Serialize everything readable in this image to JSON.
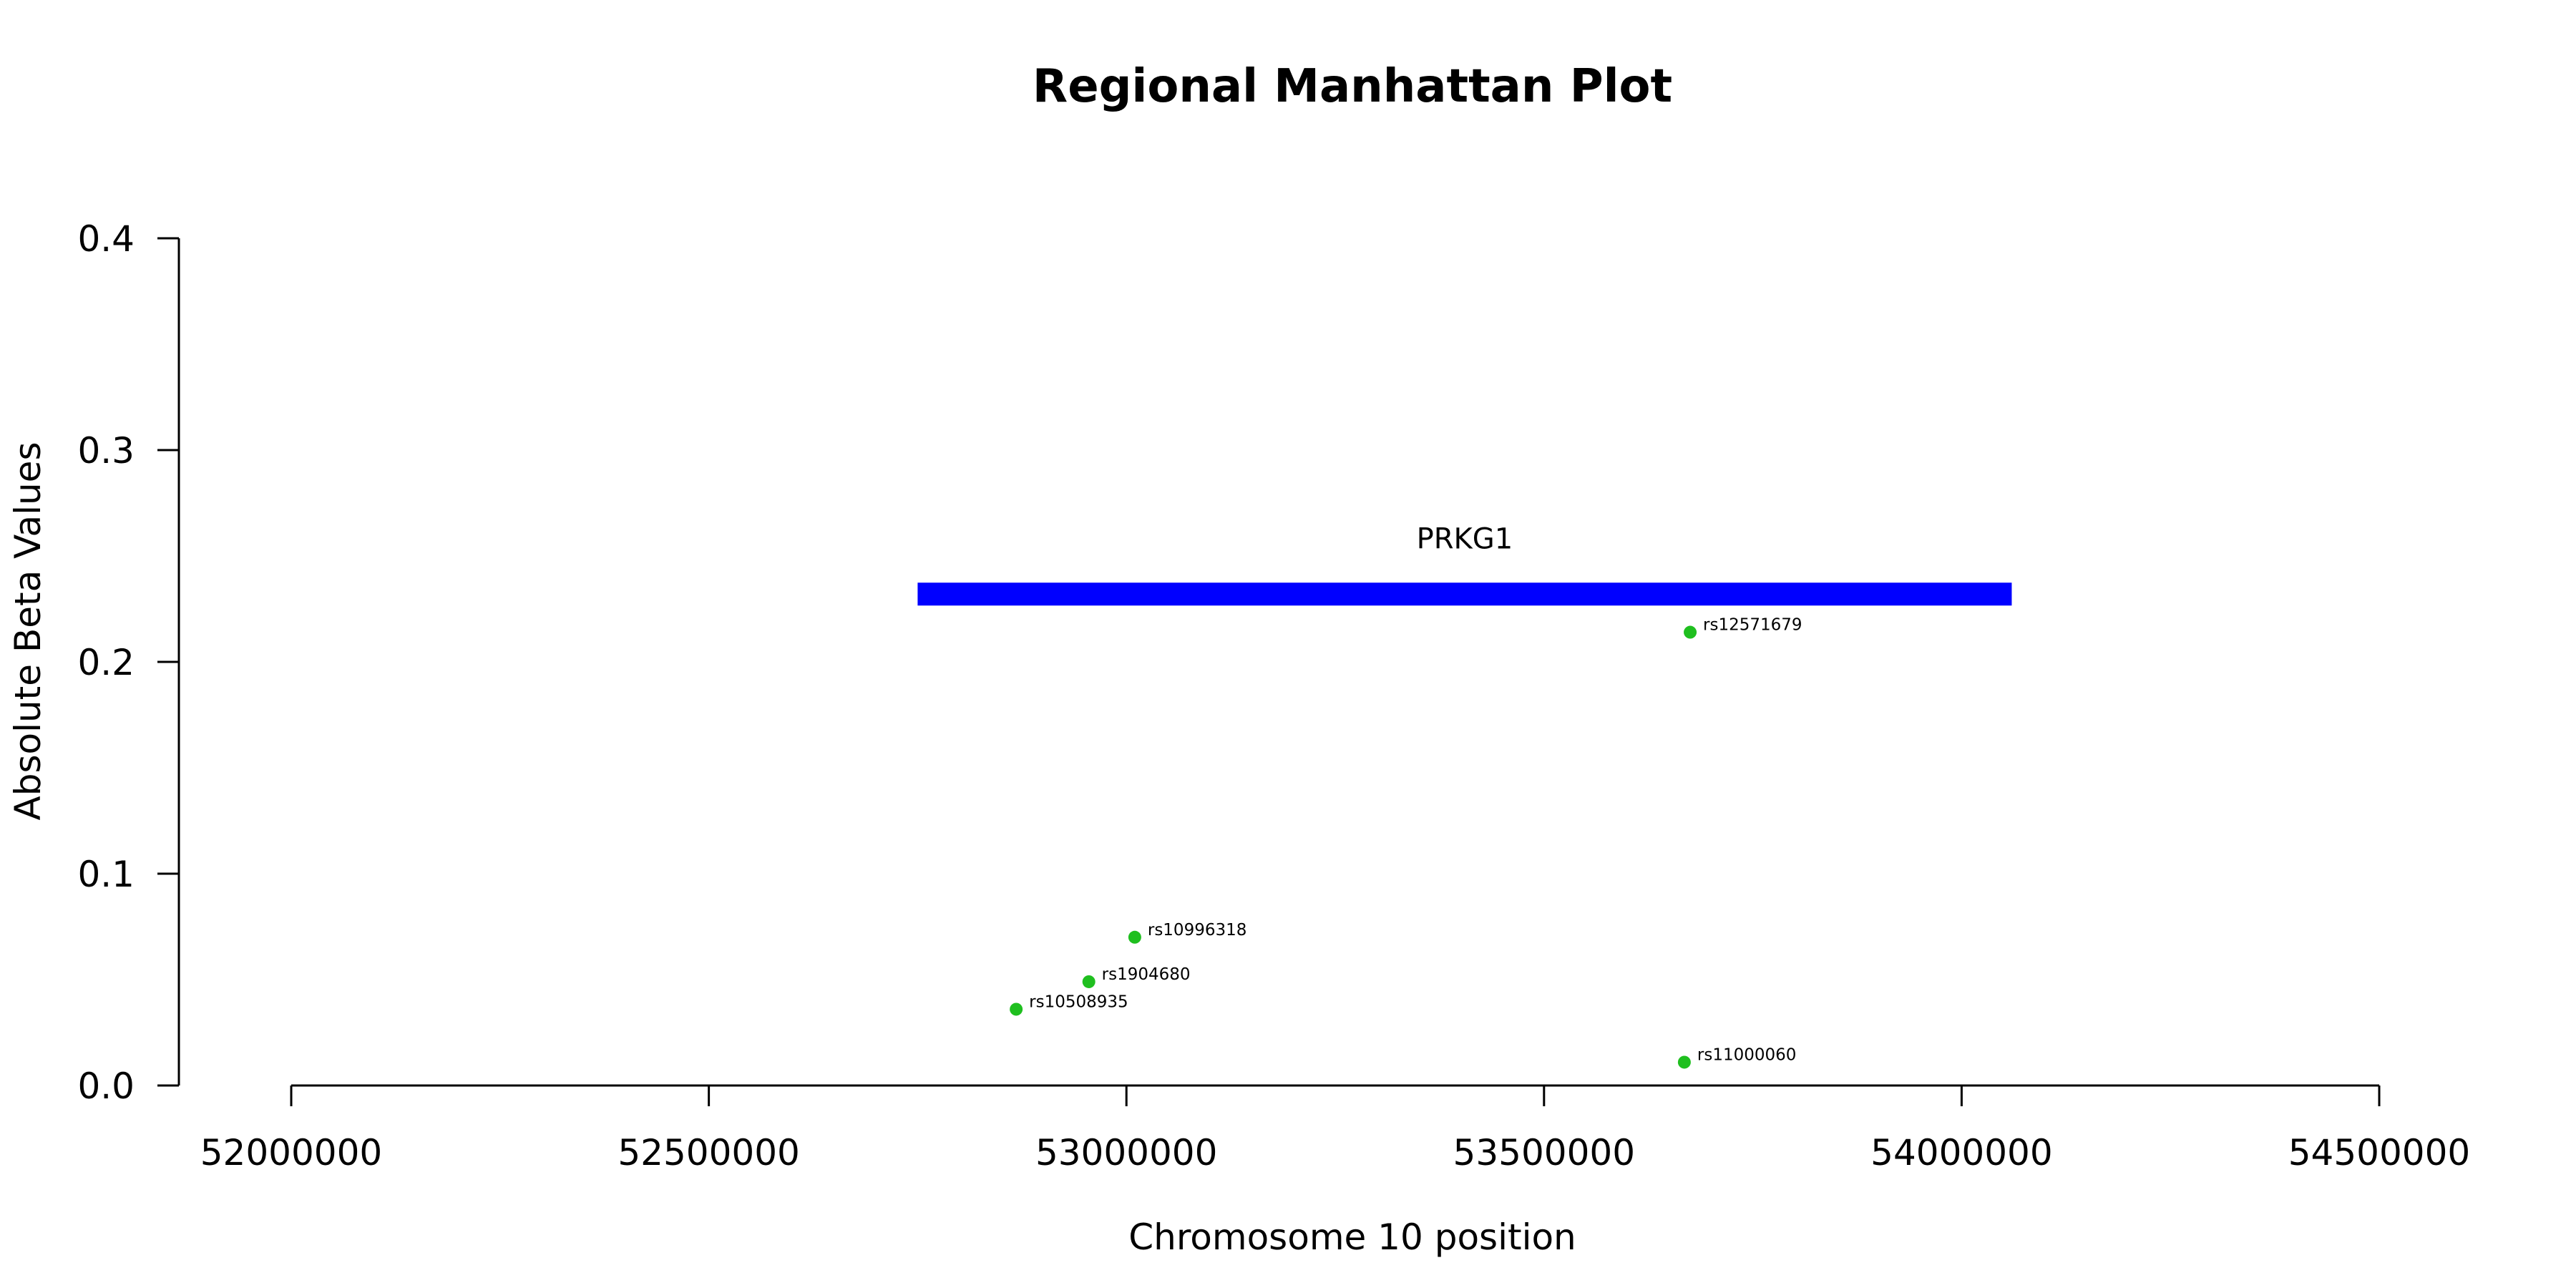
{
  "chart_data": {
    "type": "scatter",
    "title": "Regional Manhattan Plot",
    "xlabel": "Chromosome 10 position",
    "ylabel": "Absolute Beta Values",
    "xlim": [
      52000000,
      54500000
    ],
    "ylim": [
      0,
      0.4
    ],
    "x_ticks": [
      52000000,
      52500000,
      53000000,
      53500000,
      54000000,
      54500000
    ],
    "x_tick_labels": [
      "52000000",
      "52500000",
      "53000000",
      "53500000",
      "54000000",
      "54500000"
    ],
    "y_ticks": [
      0.0,
      0.1,
      0.2,
      0.3,
      0.4
    ],
    "y_tick_labels": [
      "0.0",
      "0.1",
      "0.2",
      "0.3",
      "0.4"
    ],
    "grid": false,
    "point_color": "#1fbf1f",
    "points": [
      {
        "label": "rs12571679",
        "x": 53675000,
        "y": 0.214
      },
      {
        "label": "rs10996318",
        "x": 53010000,
        "y": 0.07
      },
      {
        "label": "rs1904680",
        "x": 52955000,
        "y": 0.049
      },
      {
        "label": "rs10508935",
        "x": 52868000,
        "y": 0.036
      },
      {
        "label": "rs11000060",
        "x": 53668000,
        "y": 0.011
      }
    ],
    "genes": [
      {
        "name": "PRKG1",
        "start": 52750000,
        "end": 54060000,
        "y": 0.232,
        "color": "#0000ff"
      }
    ]
  }
}
